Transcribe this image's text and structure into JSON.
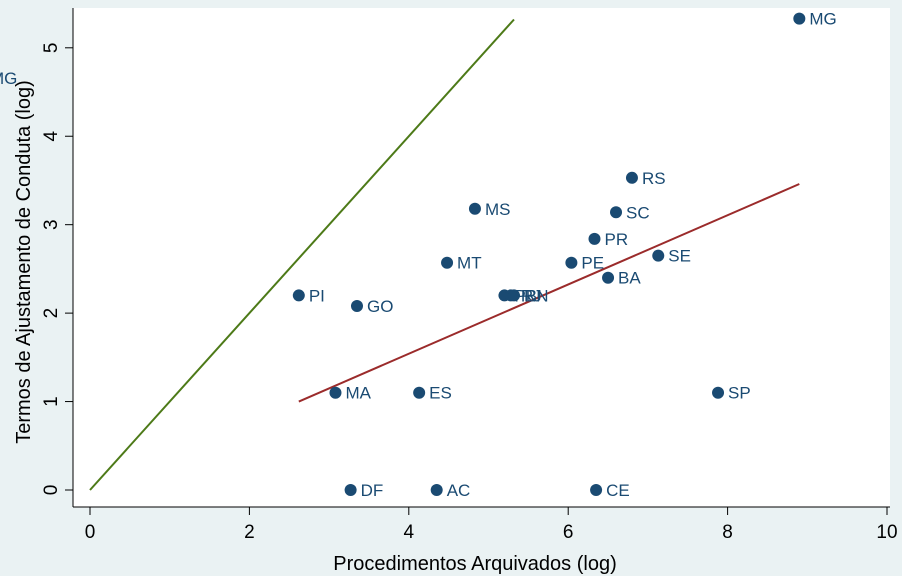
{
  "chart_data": {
    "type": "scatter",
    "xlabel": "Procedimentos Arquivados (log)",
    "ylabel": "Termos de Ajustamento de Conduta (log)",
    "xlim": [
      0,
      10
    ],
    "ylim": [
      0,
      5.45
    ],
    "xticks": [
      0,
      2,
      4,
      6,
      8,
      10
    ],
    "yticks": [
      0,
      1,
      2,
      3,
      4,
      5
    ],
    "grid": false,
    "colors": {
      "background": "#eaf2f3",
      "plot_area": "#ffffff",
      "points": "#1a4a72",
      "labels": "#1a4a72",
      "line_equality": "#4d7a18",
      "line_fit": "#9b2b2b"
    },
    "stray_label": "MG",
    "points": [
      {
        "label": "MG",
        "x": 8.9,
        "y": 5.33
      },
      {
        "label": "RS",
        "x": 6.8,
        "y": 3.53
      },
      {
        "label": "MS",
        "x": 4.83,
        "y": 3.18
      },
      {
        "label": "SC",
        "x": 6.6,
        "y": 3.14
      },
      {
        "label": "PR",
        "x": 6.33,
        "y": 2.84
      },
      {
        "label": "SE",
        "x": 7.13,
        "y": 2.65
      },
      {
        "label": "MT",
        "x": 4.48,
        "y": 2.57
      },
      {
        "label": "PE",
        "x": 6.04,
        "y": 2.57
      },
      {
        "label": "BA",
        "x": 6.5,
        "y": 2.4
      },
      {
        "label": "PI",
        "x": 2.62,
        "y": 2.2
      },
      {
        "label": "PB",
        "x": 5.2,
        "y": 2.2
      },
      {
        "label": "RJ",
        "x": 5.28,
        "y": 2.2
      },
      {
        "label": "RN",
        "x": 5.32,
        "y": 2.2
      },
      {
        "label": "GO",
        "x": 3.35,
        "y": 2.08
      },
      {
        "label": "MA",
        "x": 3.08,
        "y": 1.1
      },
      {
        "label": "ES",
        "x": 4.13,
        "y": 1.1
      },
      {
        "label": "SP",
        "x": 7.88,
        "y": 1.1
      },
      {
        "label": "DF",
        "x": 3.27,
        "y": 0
      },
      {
        "label": "AC",
        "x": 4.35,
        "y": 0
      },
      {
        "label": "CE",
        "x": 6.35,
        "y": 0
      }
    ],
    "lines": [
      {
        "kind": "equality",
        "x": [
          0,
          5.32
        ],
        "y": [
          0,
          5.32
        ]
      },
      {
        "kind": "fit",
        "x": [
          2.62,
          8.9
        ],
        "y": [
          1.0,
          3.46
        ]
      }
    ]
  }
}
